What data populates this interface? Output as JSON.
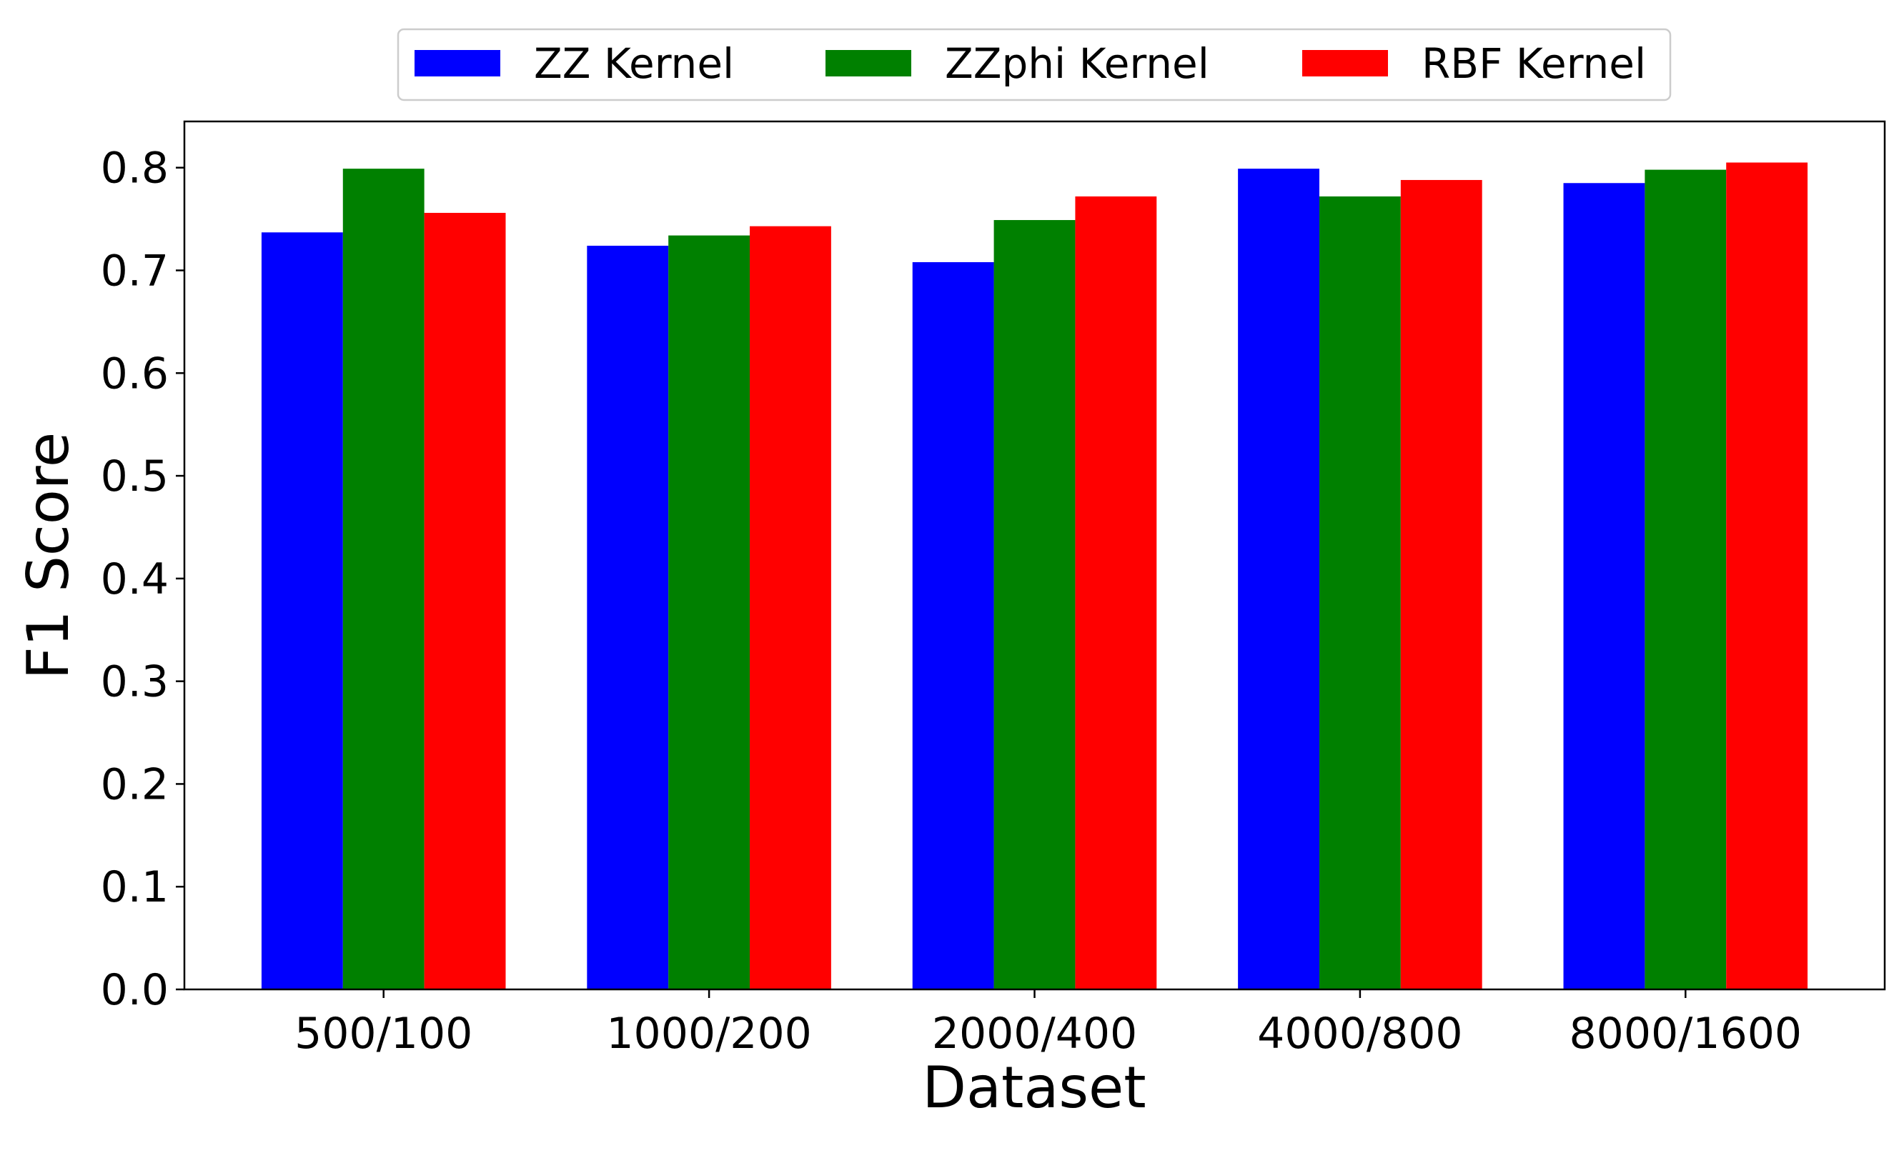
{
  "chart_data": {
    "type": "bar",
    "title": "",
    "xlabel": "Dataset",
    "ylabel": "F1 Score",
    "categories": [
      "500/100",
      "1000/200",
      "2000/400",
      "4000/800",
      "8000/1600"
    ],
    "series": [
      {
        "name": "ZZ Kernel",
        "color": "#0000ff",
        "values": [
          0.737,
          0.724,
          0.708,
          0.799,
          0.785
        ]
      },
      {
        "name": "ZZphi Kernel",
        "color": "#008000",
        "values": [
          0.799,
          0.734,
          0.749,
          0.772,
          0.798
        ]
      },
      {
        "name": "RBF Kernel",
        "color": "#ff0000",
        "values": [
          0.756,
          0.743,
          0.772,
          0.788,
          0.805
        ]
      }
    ],
    "ylim": [
      0,
      0.845
    ],
    "yticks": [
      "0.0",
      "0.1",
      "0.2",
      "0.3",
      "0.4",
      "0.5",
      "0.6",
      "0.7",
      "0.8"
    ],
    "grid": false,
    "legend_placement": "top-center"
  }
}
